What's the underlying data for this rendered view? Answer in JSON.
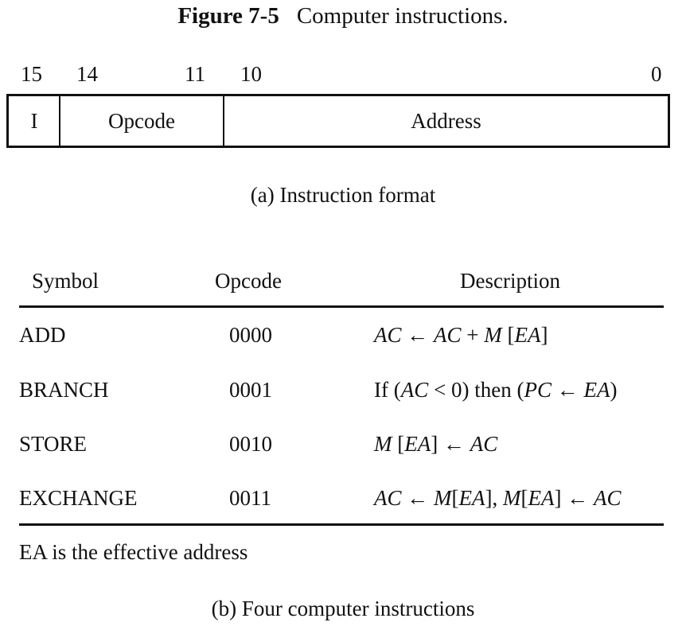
{
  "figure": {
    "number": "Figure 7-5",
    "title": "Computer instructions."
  },
  "format": {
    "bit_labels": {
      "b15": "15",
      "b14": "14",
      "b11": "11",
      "b10": "10",
      "b0": "0"
    },
    "fields": {
      "i": "I",
      "opcode": "Opcode",
      "address": "Address"
    },
    "caption": "(a) Instruction format"
  },
  "table": {
    "headers": {
      "symbol": "Symbol",
      "opcode": "Opcode",
      "description": "Description"
    },
    "rows": [
      {
        "symbol": "ADD",
        "opcode": "0000",
        "description": "AC ← AC + M [EA]"
      },
      {
        "symbol": "BRANCH",
        "opcode": "0001",
        "description": "If (AC < 0) then (PC ← EA)"
      },
      {
        "symbol": "STORE",
        "opcode": "0010",
        "description": "M [EA] ← AC"
      },
      {
        "symbol": "EXCHANGE",
        "opcode": "0011",
        "description": "AC ← M[EA], M[EA] ← AC"
      }
    ],
    "note": "EA is the effective address",
    "caption": "(b) Four computer instructions"
  }
}
